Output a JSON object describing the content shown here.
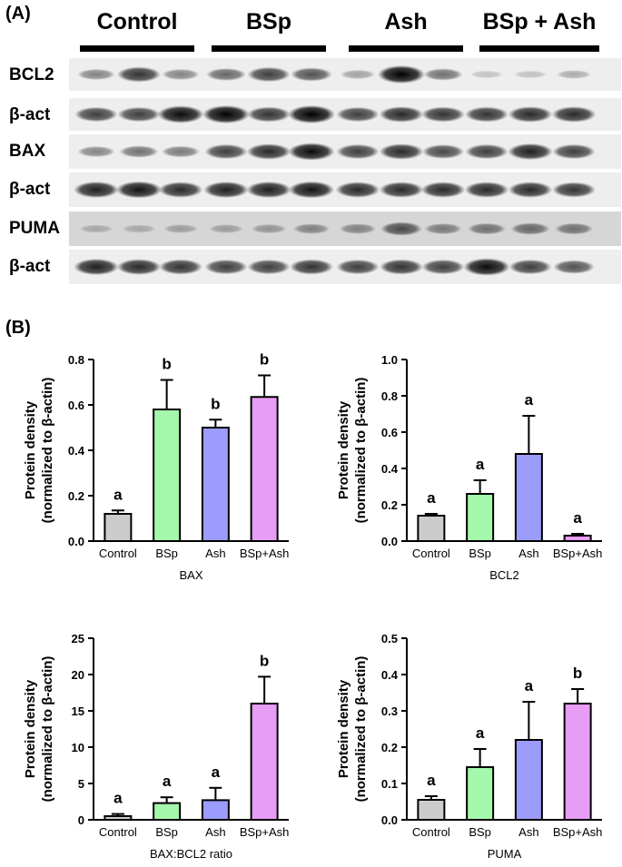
{
  "panel_a": {
    "letter": "(A)",
    "groups": [
      "Control",
      "BSp",
      "Ash",
      "BSp + Ash"
    ],
    "rows": [
      "BCL2",
      "β-act",
      "BAX",
      "β-act",
      "PUMA",
      "β-act"
    ]
  },
  "panel_b": {
    "letter": "(B)"
  },
  "blot_bands": [
    {
      "row": "BCL2",
      "strip": "light",
      "intensity": [
        0.35,
        0.75,
        0.35,
        0.5,
        0.7,
        0.6,
        0.2,
        1.0,
        0.45,
        0.05,
        0.05,
        0.15
      ]
    },
    {
      "row": "β-act",
      "strip": "light",
      "intensity": [
        0.7,
        0.7,
        0.95,
        1.0,
        0.75,
        1.0,
        0.7,
        0.8,
        0.75,
        0.75,
        0.8,
        0.8
      ]
    },
    {
      "row": "BAX",
      "strip": "light",
      "intensity": [
        0.35,
        0.45,
        0.4,
        0.7,
        0.8,
        0.95,
        0.7,
        0.8,
        0.65,
        0.7,
        0.85,
        0.7
      ]
    },
    {
      "row": "β-act",
      "strip": "light",
      "intensity": [
        0.85,
        0.9,
        0.8,
        0.85,
        0.85,
        0.9,
        0.8,
        0.8,
        0.8,
        0.8,
        0.8,
        0.75
      ]
    },
    {
      "row": "PUMA",
      "strip": "gray",
      "intensity": [
        0.1,
        0.1,
        0.15,
        0.15,
        0.2,
        0.3,
        0.3,
        0.6,
        0.35,
        0.4,
        0.45,
        0.4
      ]
    },
    {
      "row": "β-act",
      "strip": "light",
      "intensity": [
        0.85,
        0.8,
        0.75,
        0.7,
        0.7,
        0.75,
        0.7,
        0.75,
        0.7,
        0.95,
        0.7,
        0.6
      ]
    }
  ],
  "chart_data": [
    {
      "type": "bar",
      "title": "BAX",
      "ylabel": [
        "Protein density",
        "(normalized to β-actin)"
      ],
      "categories": [
        "Control",
        "BSp",
        "Ash",
        "BSp+Ash"
      ],
      "values": [
        0.12,
        0.58,
        0.5,
        0.635
      ],
      "errors": [
        0.015,
        0.13,
        0.035,
        0.095
      ],
      "letters": [
        "a",
        "b",
        "b",
        "b"
      ],
      "ylim": [
        0,
        0.8
      ],
      "yticks": [
        "0.0",
        "0.2",
        "0.4",
        "0.6",
        "0.8"
      ],
      "colors": [
        "#cccccc",
        "#a4f7ab",
        "#9b9cfb",
        "#e79cf5"
      ]
    },
    {
      "type": "bar",
      "title": "BCL2",
      "ylabel": [
        "Protein density",
        "(normalized to β-actin)"
      ],
      "categories": [
        "Control",
        "BSp",
        "Ash",
        "BSp+Ash"
      ],
      "values": [
        0.14,
        0.26,
        0.48,
        0.03
      ],
      "errors": [
        0.01,
        0.075,
        0.21,
        0.01
      ],
      "letters": [
        "a",
        "a",
        "a",
        "a"
      ],
      "ylim": [
        0,
        1.0
      ],
      "yticks": [
        "0.0",
        "0.2",
        "0.4",
        "0.6",
        "0.8",
        "1.0"
      ],
      "colors": [
        "#cccccc",
        "#a4f7ab",
        "#9b9cfb",
        "#e79cf5"
      ]
    },
    {
      "type": "bar",
      "title": "BAX:BCL2 ratio",
      "ylabel": [
        "Protein density",
        "(normalized to β-actin)"
      ],
      "categories": [
        "Control",
        "BSp",
        "Ash",
        "BSp+Ash"
      ],
      "values": [
        0.5,
        2.3,
        2.7,
        16.0
      ],
      "errors": [
        0.3,
        0.8,
        1.7,
        3.7
      ],
      "letters": [
        "a",
        "a",
        "a",
        "b"
      ],
      "ylim": [
        0,
        25
      ],
      "yticks": [
        "0",
        "5",
        "10",
        "15",
        "20",
        "25"
      ],
      "colors": [
        "#cccccc",
        "#a4f7ab",
        "#9b9cfb",
        "#e79cf5"
      ]
    },
    {
      "type": "bar",
      "title": "PUMA",
      "ylabel": [
        "Protein density",
        "(normalized to β-actin)"
      ],
      "categories": [
        "Control",
        "BSp",
        "Ash",
        "BSp+Ash"
      ],
      "values": [
        0.055,
        0.145,
        0.22,
        0.32
      ],
      "errors": [
        0.01,
        0.05,
        0.105,
        0.04
      ],
      "letters": [
        "a",
        "a",
        "a",
        "b"
      ],
      "ylim": [
        0,
        0.5
      ],
      "yticks": [
        "0.0",
        "0.1",
        "0.2",
        "0.3",
        "0.4",
        "0.5"
      ],
      "colors": [
        "#cccccc",
        "#a4f7ab",
        "#9b9cfb",
        "#e79cf5"
      ]
    }
  ]
}
